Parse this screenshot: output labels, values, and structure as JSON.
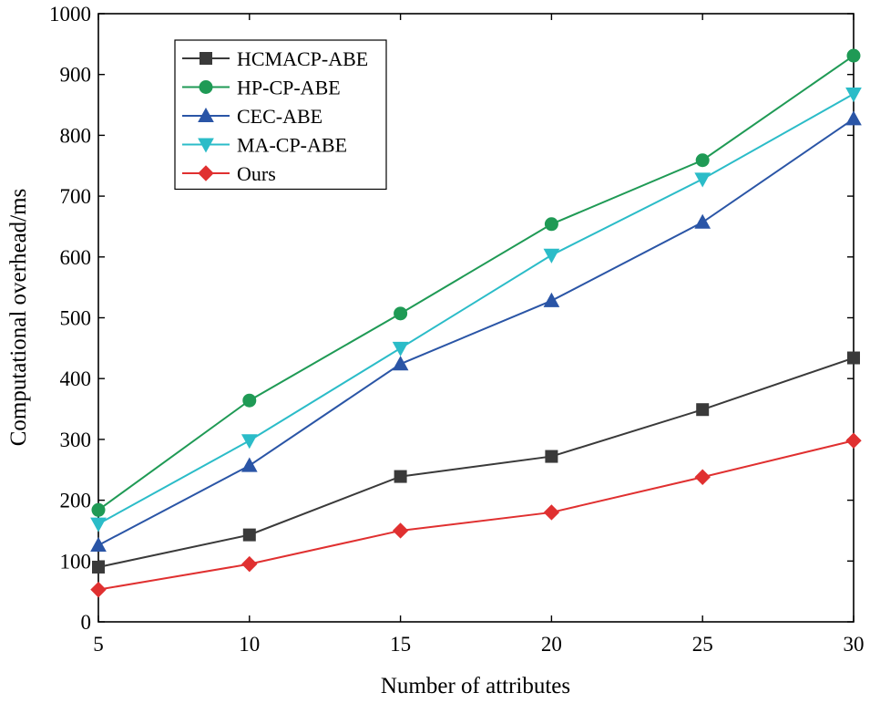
{
  "chart_data": {
    "type": "line",
    "xlabel": "Number of attributes",
    "ylabel": "Computational overhead/ms",
    "x": [
      5,
      10,
      15,
      20,
      25,
      30
    ],
    "xlim": [
      5,
      30
    ],
    "ylim": [
      0,
      1000
    ],
    "x_ticks": [
      "5",
      "10",
      "15",
      "20",
      "25",
      "30"
    ],
    "y_ticks": [
      "0",
      "100",
      "200",
      "300",
      "400",
      "500",
      "600",
      "700",
      "800",
      "900",
      "1000"
    ],
    "grid": false,
    "legend_position": "top-left",
    "series": [
      {
        "name": "HCMACP-ABE",
        "color": "#3a3a3a",
        "marker": "square",
        "values": [
          90,
          143,
          239,
          272,
          349,
          434
        ]
      },
      {
        "name": "HP-CP-ABE",
        "color": "#1f9a55",
        "marker": "circle",
        "values": [
          184,
          364,
          507,
          654,
          759,
          931
        ]
      },
      {
        "name": "CEC-ABE",
        "color": "#2a55a6",
        "marker": "triangle-up",
        "values": [
          126,
          257,
          424,
          528,
          657,
          827
        ]
      },
      {
        "name": "MA-CP-ABE",
        "color": "#2bbcc8",
        "marker": "triangle-down",
        "values": [
          161,
          298,
          450,
          603,
          728,
          868
        ]
      },
      {
        "name": "Ours",
        "color": "#e03030",
        "marker": "diamond",
        "values": [
          53,
          95,
          150,
          180,
          238,
          298
        ]
      }
    ]
  }
}
